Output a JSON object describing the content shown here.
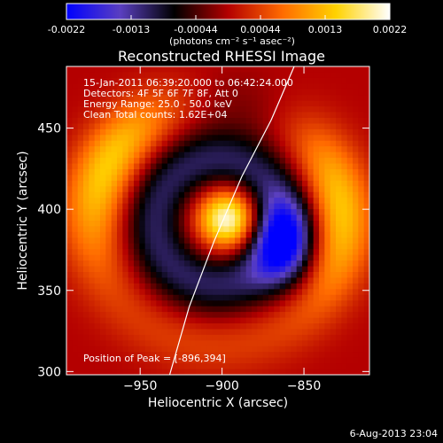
{
  "chart_data": {
    "type": "heatmap",
    "title": "Reconstructed RHESSI Image",
    "xlabel": "Heliocentric X (arcsec)",
    "ylabel": "Heliocentric Y (arcsec)",
    "xlim": [
      -995,
      -810
    ],
    "ylim": [
      298,
      488
    ],
    "x_ticks": [
      -950,
      -900,
      -850
    ],
    "y_ticks": [
      300,
      350,
      400,
      450
    ],
    "colorbar": {
      "min": -0.0022,
      "max": 0.0022,
      "ticks": [
        "-0.0022",
        "-0.0013",
        "-0.00044",
        "0.00044",
        "0.0013",
        "0.0022"
      ],
      "units": "(photons cm⁻² s⁻¹ asec⁻²)",
      "colors": [
        "#0000ff",
        "#5a3fc0",
        "#000000",
        "#b40000",
        "#ff6a00",
        "#ffd200",
        "#ffffff"
      ]
    },
    "annotations": {
      "time_range": "15-Jan-2011 06:39:20.000 to 06:42:24.000",
      "detectors": "Detectors: 4F 5F 6F 7F 8F, Att 0",
      "energy": "Energy Range: 25.0 - 50.0 keV",
      "clean": "Clean    Total counts: 1.62E+04",
      "peak": "Position of Peak = [-896,394]"
    },
    "peak": {
      "x": -896,
      "y": 394
    },
    "limb_curve": [
      [
        -932,
        298
      ],
      [
        -920,
        340
      ],
      [
        -905,
        380
      ],
      [
        -888,
        420
      ],
      [
        -870,
        455
      ],
      [
        -856,
        488
      ]
    ],
    "sources": [
      {
        "type": "peak",
        "x": -896,
        "y": 394,
        "value": 0.0022
      },
      {
        "type": "negative",
        "x": -862,
        "y": 380,
        "value": -0.0018
      },
      {
        "type": "ring",
        "x": -903,
        "y": 392,
        "radius": 75,
        "value": 0.0012
      }
    ],
    "footer": "6-Aug-2013 23:04"
  }
}
